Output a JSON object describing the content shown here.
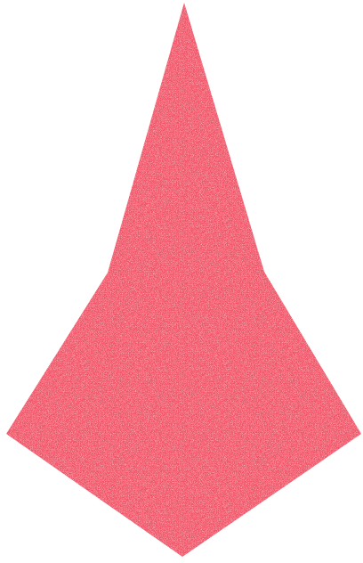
{
  "shape": {
    "fill_color": "#f25368",
    "speckle_light_color": "#fbd3da",
    "speckle_dark_color": "#6a1f2a",
    "texture": "noise"
  },
  "background": {
    "color": "#ffffff"
  }
}
